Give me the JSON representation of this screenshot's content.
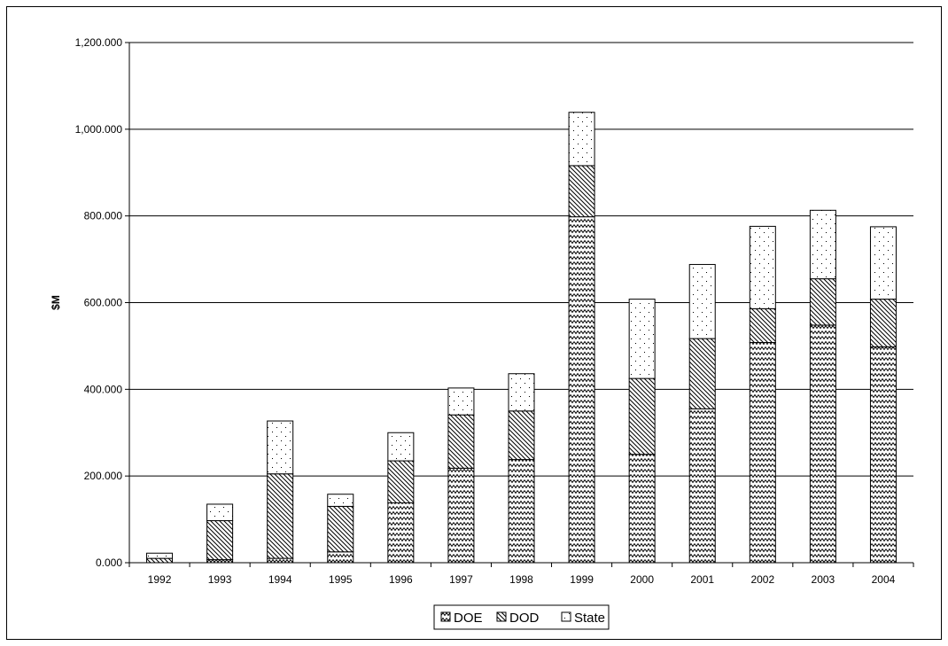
{
  "chart_data": {
    "type": "bar",
    "stacked": true,
    "title": "",
    "xlabel": "",
    "ylabel": "$M",
    "ylim": [
      0,
      1200
    ],
    "yticks": [
      "0.000",
      "200.000",
      "400.000",
      "600.000",
      "800.000",
      "1,000.000",
      "1,200.000"
    ],
    "ytick_values": [
      0,
      200,
      400,
      600,
      800,
      1000,
      1200
    ],
    "grid": true,
    "legend_position": "bottom",
    "categories": [
      "1992",
      "1993",
      "1994",
      "1995",
      "1996",
      "1997",
      "1998",
      "1999",
      "2000",
      "2001",
      "2002",
      "2003",
      "2004"
    ],
    "series": [
      {
        "name": "DOE",
        "pattern": "wave",
        "values": [
          0,
          7,
          10,
          25,
          138,
          218,
          238,
          798,
          250,
          355,
          508,
          548,
          498
        ]
      },
      {
        "name": "DOD",
        "pattern": "diagonal",
        "values": [
          10,
          90,
          195,
          105,
          97,
          123,
          112,
          118,
          175,
          162,
          78,
          107,
          110
        ]
      },
      {
        "name": "State",
        "pattern": "dots",
        "values": [
          12,
          38,
          122,
          28,
          65,
          62,
          86,
          123,
          183,
          171,
          190,
          158,
          167
        ]
      }
    ]
  }
}
